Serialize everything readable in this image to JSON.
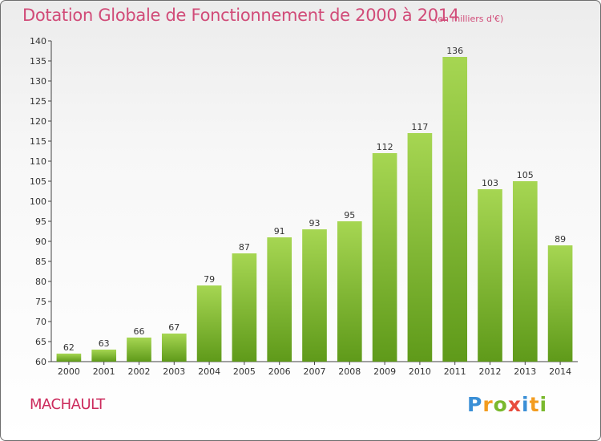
{
  "header": {
    "title": "Dotation Globale de Fonctionnement de 2000 à 2014",
    "subtitle": "(en milliers d'€)"
  },
  "footer": {
    "commune": "MACHAULT",
    "logo_letters": [
      "P",
      "r",
      "o",
      "x",
      "i",
      "t",
      "i"
    ]
  },
  "colors": {
    "bar_top": "#a6d652",
    "bar_bottom": "#5f9a1a",
    "title": "#d14b78",
    "commune": "#cc2a5c"
  },
  "chart_data": {
    "type": "bar",
    "categories": [
      "2000",
      "2001",
      "2002",
      "2003",
      "2004",
      "2005",
      "2006",
      "2007",
      "2008",
      "2009",
      "2010",
      "2011",
      "2012",
      "2013",
      "2014"
    ],
    "values": [
      62,
      63,
      66,
      67,
      79,
      87,
      91,
      93,
      95,
      112,
      117,
      136,
      103,
      105,
      89
    ],
    "ylim": [
      60,
      140
    ],
    "yticks": [
      60,
      65,
      70,
      75,
      80,
      85,
      90,
      95,
      100,
      105,
      110,
      115,
      120,
      125,
      130,
      135,
      140
    ],
    "grid": false,
    "data_labels": true
  }
}
